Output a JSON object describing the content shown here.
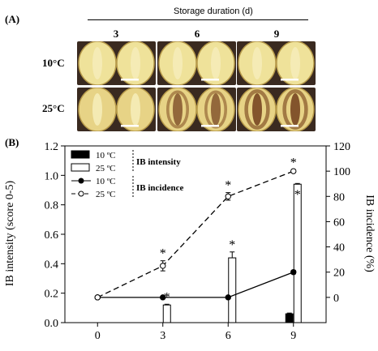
{
  "panel_a": {
    "label": "(A)",
    "duration_title": "Storage duration (d)",
    "days": [
      "3",
      "6",
      "9"
    ],
    "temps": [
      "10",
      "25"
    ],
    "temp_unit": "°C"
  },
  "panel_b": {
    "label": "(B)"
  },
  "chart_data": {
    "type": "bar",
    "x": [
      0,
      3,
      6,
      9
    ],
    "xlim": [
      -1.5,
      10.5
    ],
    "ylabel_left": "IB intensity (score 0-5)",
    "ylabel_right": "IB incidence (%)",
    "ylim_left": [
      0,
      1.2
    ],
    "ylim_right": [
      -20,
      120
    ],
    "yticks_left": [
      "0.0",
      "0.2",
      "0.4",
      "0.6",
      "0.8",
      "1.0",
      "1.2"
    ],
    "yticks_right": [
      "0",
      "20",
      "40",
      "60",
      "80",
      "100",
      "120"
    ],
    "xticks": [
      "0",
      "3",
      "6",
      "9"
    ],
    "bars": [
      {
        "name": "10 °C",
        "axis": "left",
        "fill": "#000000",
        "values": [
          0,
          0,
          0,
          0.06
        ],
        "errors": [
          0,
          0,
          0,
          0.005
        ],
        "sig": [
          false,
          false,
          false,
          false
        ]
      },
      {
        "name": "25 °C",
        "axis": "left",
        "fill": "#ffffff",
        "values": [
          0,
          0.12,
          0.44,
          0.94
        ],
        "errors": [
          0,
          0.005,
          0.04,
          0.005
        ],
        "sig": [
          false,
          true,
          true,
          true
        ]
      }
    ],
    "lines": [
      {
        "name": "10 °C",
        "axis": "right",
        "marker": "filled",
        "dash": false,
        "values": [
          0,
          0,
          0,
          20
        ],
        "errors": [
          0,
          0,
          0,
          1.5
        ],
        "sig": [
          false,
          false,
          false,
          false
        ]
      },
      {
        "name": "25 °C",
        "axis": "right",
        "marker": "open",
        "dash": true,
        "values": [
          0,
          25,
          80,
          100
        ],
        "errors": [
          0,
          4,
          3,
          1
        ],
        "sig": [
          false,
          true,
          true,
          true
        ]
      }
    ],
    "legend": {
      "position": "top-left",
      "items": [
        {
          "kind": "bar",
          "fill": "#000000",
          "label": "10 ºC"
        },
        {
          "kind": "bar",
          "fill": "#ffffff",
          "label": "25 ºC"
        },
        {
          "kind": "line",
          "marker": "filled",
          "dash": false,
          "label": "10 ºC"
        },
        {
          "kind": "line",
          "marker": "open",
          "dash": true,
          "label": "25 ºC"
        }
      ],
      "groups": [
        "IB intensity",
        "IB incidence"
      ]
    },
    "sig_marker": "*"
  }
}
